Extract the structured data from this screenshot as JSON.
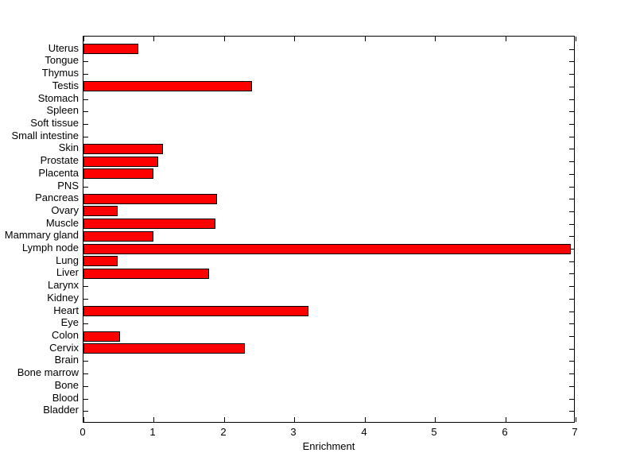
{
  "figure": {
    "background_color": "#ffffff",
    "axis_color": "#000000",
    "text_color": "#000000"
  },
  "chart_data": {
    "type": "bar",
    "orientation": "horizontal",
    "title": "",
    "xlabel": "Enrichment",
    "ylabel": "",
    "xlim": [
      0,
      7
    ],
    "xticks": [
      "0",
      "1",
      "2",
      "3",
      "4",
      "5",
      "6",
      "7"
    ],
    "grid": false,
    "legend": null,
    "bar_color": "#ff0000",
    "bar_edge_color": "#000000",
    "categories": [
      "Uterus",
      "Tongue",
      "Thymus",
      "Testis",
      "Stomach",
      "Spleen",
      "Soft tissue",
      "Small intestine",
      "Skin",
      "Prostate",
      "Placenta",
      "PNS",
      "Pancreas",
      "Ovary",
      "Muscle",
      "Mammary gland",
      "Lymph node",
      "Lung",
      "Liver",
      "Larynx",
      "Kidney",
      "Heart",
      "Eye",
      "Colon",
      "Cervix",
      "Brain",
      "Bone marrow",
      "Bone",
      "Blood",
      "Bladder"
    ],
    "values": [
      0.78,
      0,
      0,
      2.4,
      0,
      0,
      0,
      0,
      1.13,
      1.06,
      1.0,
      0,
      1.9,
      0.49,
      1.88,
      1.0,
      6.93,
      0.49,
      1.79,
      0,
      0,
      3.2,
      0,
      0.52,
      2.29,
      0,
      0,
      0,
      0,
      0
    ]
  }
}
